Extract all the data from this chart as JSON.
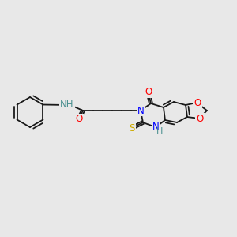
{
  "background_color": "#e8e8e8",
  "bond_color": "#1a1a1a",
  "atom_colors": {
    "N": "#0000ff",
    "O": "#ff0000",
    "S": "#ccaa00",
    "H_label": "#4a9090",
    "C": "#1a1a1a"
  },
  "font_size_atom": 8.5,
  "figsize": [
    3.0,
    3.0
  ],
  "dpi": 100
}
